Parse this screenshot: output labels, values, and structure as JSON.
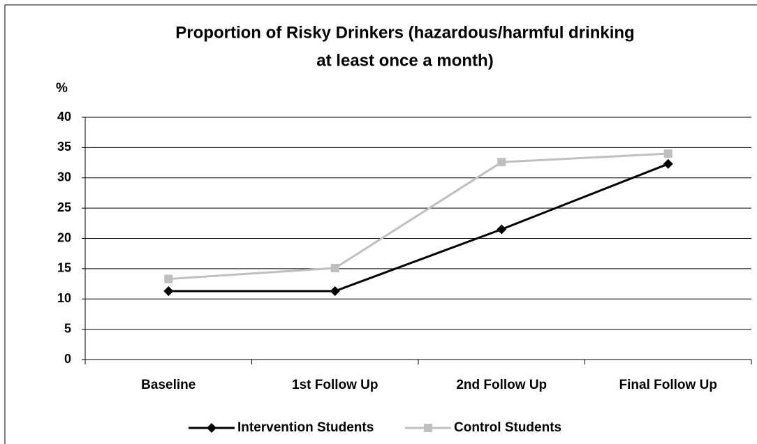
{
  "chart_data": {
    "type": "line",
    "title": [
      "Proportion of Risky Drinkers (hazardous/harmful drinking",
      "at least once a month)"
    ],
    "y_label": "%",
    "categories": [
      "Baseline",
      "1st Follow Up",
      "2nd Follow Up",
      "Final Follow Up"
    ],
    "series": [
      {
        "name": "Intervention Students",
        "color": "#000000",
        "marker": "diamond",
        "values": [
          11.3,
          11.3,
          21.5,
          32.3
        ]
      },
      {
        "name": "Control Students",
        "color": "#bfbfbf",
        "marker": "square",
        "values": [
          13.3,
          15.1,
          32.6,
          34.0
        ]
      }
    ],
    "ylim": [
      0,
      40
    ],
    "yticks": [
      0,
      5,
      10,
      15,
      20,
      25,
      30,
      35,
      40
    ],
    "grid": true,
    "legend": "bottom"
  }
}
